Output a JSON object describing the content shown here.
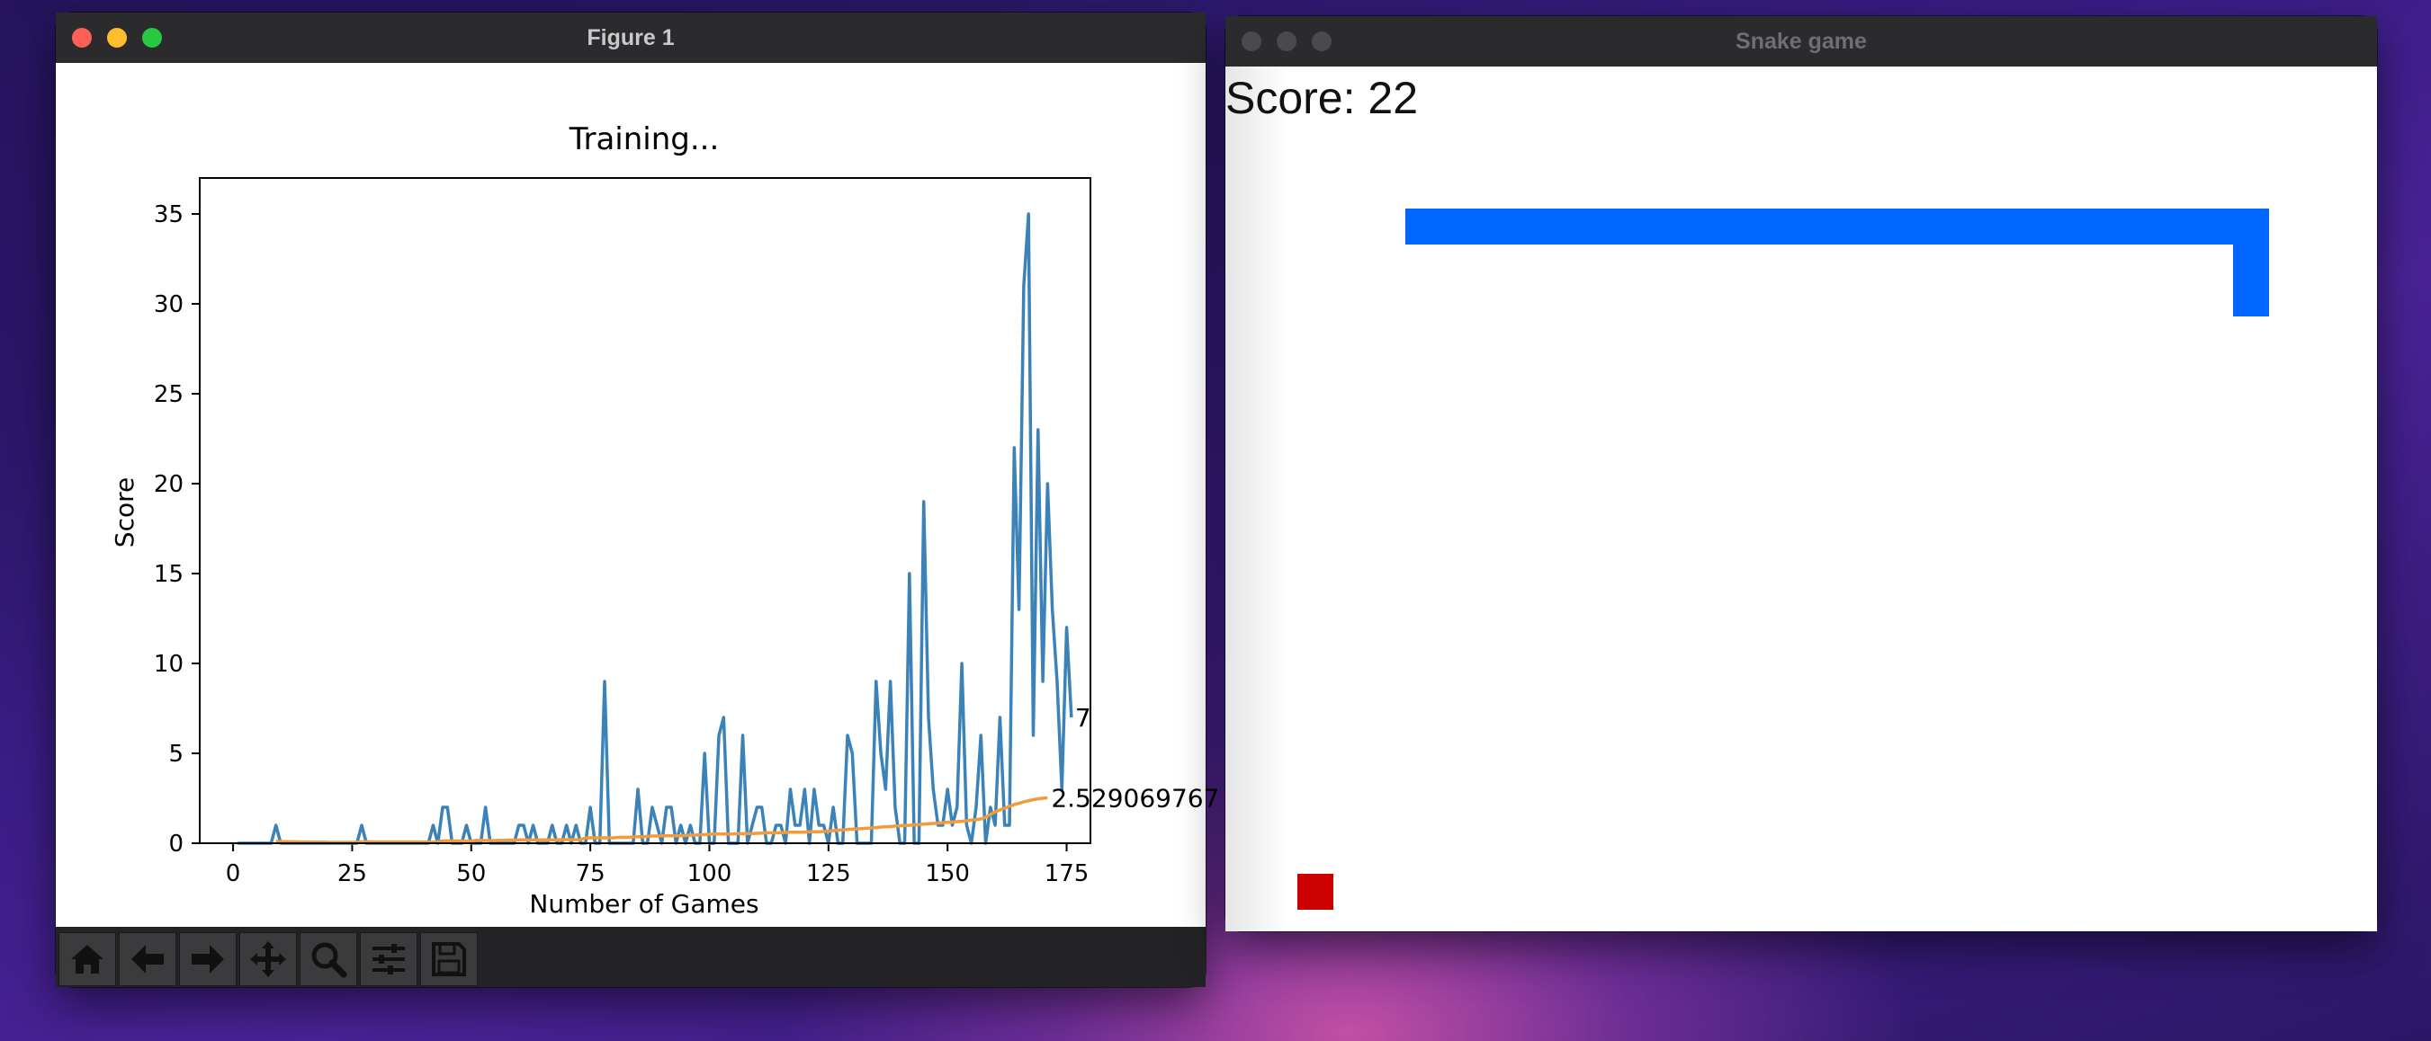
{
  "figure_window": {
    "title": "Figure 1",
    "chart_data": {
      "type": "line",
      "title": "Training...",
      "xlabel": "Number of Games",
      "ylabel": "Score",
      "xlim": [
        -7,
        180
      ],
      "ylim": [
        0,
        37
      ],
      "xticks": [
        0,
        25,
        50,
        75,
        100,
        125,
        150,
        175
      ],
      "yticks": [
        0,
        5,
        10,
        15,
        20,
        25,
        30,
        35
      ],
      "grid": false,
      "series": [
        {
          "name": "",
          "color": "#3b82b8",
          "x_start": 1,
          "values": [
            0,
            0,
            0,
            0,
            0,
            0,
            0,
            0,
            1,
            0,
            0,
            0,
            0,
            0,
            0,
            0,
            0,
            0,
            0,
            0,
            0,
            0,
            0,
            0,
            0,
            0,
            1,
            0,
            0,
            0,
            0,
            0,
            0,
            0,
            0,
            0,
            0,
            0,
            0,
            0,
            0,
            1,
            0,
            2,
            2,
            0,
            0,
            0,
            1,
            0,
            0,
            0,
            2,
            0,
            0,
            0,
            0,
            0,
            0,
            1,
            1,
            0,
            1,
            0,
            0,
            0,
            1,
            0,
            0,
            1,
            0,
            1,
            0,
            0,
            2,
            0,
            0,
            9,
            0,
            0,
            0,
            0,
            0,
            0,
            3,
            0,
            0,
            2,
            1,
            0,
            2,
            2,
            0,
            1,
            0,
            1,
            0,
            0,
            5,
            0,
            0,
            6,
            7,
            0,
            0,
            0,
            6,
            0,
            1,
            2,
            2,
            0,
            0,
            1,
            1,
            0,
            3,
            1,
            1,
            3,
            0,
            3,
            1,
            1,
            0,
            2,
            0,
            0,
            6,
            5,
            0,
            0,
            0,
            0,
            9,
            5,
            3,
            9,
            2,
            0,
            0,
            15,
            0,
            0,
            19,
            7,
            3,
            1,
            1,
            3,
            1,
            2,
            10,
            1,
            0,
            2,
            6,
            0,
            2,
            1,
            7,
            1,
            1,
            22,
            13,
            31,
            35,
            6,
            23,
            9,
            20,
            13,
            9,
            3,
            12,
            7
          ],
          "end_label": "7"
        },
        {
          "name": "",
          "color": "#f39a3a",
          "x_start": 9,
          "values": [
            0.11,
            0.1,
            0.09,
            0.09,
            0.08,
            0.07,
            0.07,
            0.06,
            0.06,
            0.06,
            0.06,
            0.05,
            0.05,
            0.05,
            0.05,
            0.05,
            0.05,
            0.05,
            0.08,
            0.08,
            0.08,
            0.07,
            0.07,
            0.07,
            0.07,
            0.07,
            0.07,
            0.07,
            0.07,
            0.07,
            0.07,
            0.07,
            0.07,
            0.06,
            0.09,
            0.13,
            0.13,
            0.13,
            0.13,
            0.12,
            0.12,
            0.12,
            0.16,
            0.16,
            0.15,
            0.15,
            0.15,
            0.16,
            0.16,
            0.17,
            0.18,
            0.18,
            0.19,
            0.18,
            0.19,
            0.19,
            0.18,
            0.19,
            0.18,
            0.18,
            0.2,
            0.2,
            0.2,
            0.2,
            0.2,
            0.3,
            0.3,
            0.3,
            0.3,
            0.3,
            0.3,
            0.3,
            0.33,
            0.33,
            0.33,
            0.35,
            0.36,
            0.36,
            0.38,
            0.4,
            0.4,
            0.41,
            0.41,
            0.41,
            0.41,
            0.41,
            0.43,
            0.45,
            0.45,
            0.47,
            0.48,
            0.5,
            0.52,
            0.52,
            0.51,
            0.51,
            0.52,
            0.54,
            0.53,
            0.54,
            0.54,
            0.55,
            0.56,
            0.58,
            0.58,
            0.58,
            0.59,
            0.6,
            0.61,
            0.61,
            0.61,
            0.62,
            0.64,
            0.64,
            0.64,
            0.65,
            0.68,
            0.7,
            0.72,
            0.74,
            0.77,
            0.78,
            0.8,
            0.81,
            0.83,
            0.85,
            0.87,
            0.9,
            0.92,
            0.93,
            0.95,
            0.97,
            0.99,
            1.0,
            1.02,
            1.04,
            1.06,
            1.08,
            1.1,
            1.12,
            1.14,
            1.16,
            1.18,
            1.2,
            1.22,
            1.25,
            1.28,
            1.31,
            1.35,
            1.45,
            1.6,
            1.75,
            1.85,
            1.95,
            2.05,
            2.15,
            2.22,
            2.3,
            2.36,
            2.42,
            2.47,
            2.5,
            2.53
          ],
          "end_label": "2.529069767"
        }
      ]
    },
    "toolbar": [
      {
        "icon": "home-icon",
        "name": "home-button"
      },
      {
        "icon": "arrow-left-icon",
        "name": "back-button"
      },
      {
        "icon": "arrow-right-icon",
        "name": "forward-button"
      },
      {
        "icon": "move-icon",
        "name": "pan-button"
      },
      {
        "icon": "magnifier-icon",
        "name": "zoom-button"
      },
      {
        "icon": "sliders-icon",
        "name": "configure-subplots-button"
      },
      {
        "icon": "save-icon",
        "name": "save-button"
      }
    ]
  },
  "snake_window": {
    "title": "Snake game",
    "score_text": "Score: 22",
    "snake_color": "#0066ff",
    "food_color": "#cc0000"
  }
}
